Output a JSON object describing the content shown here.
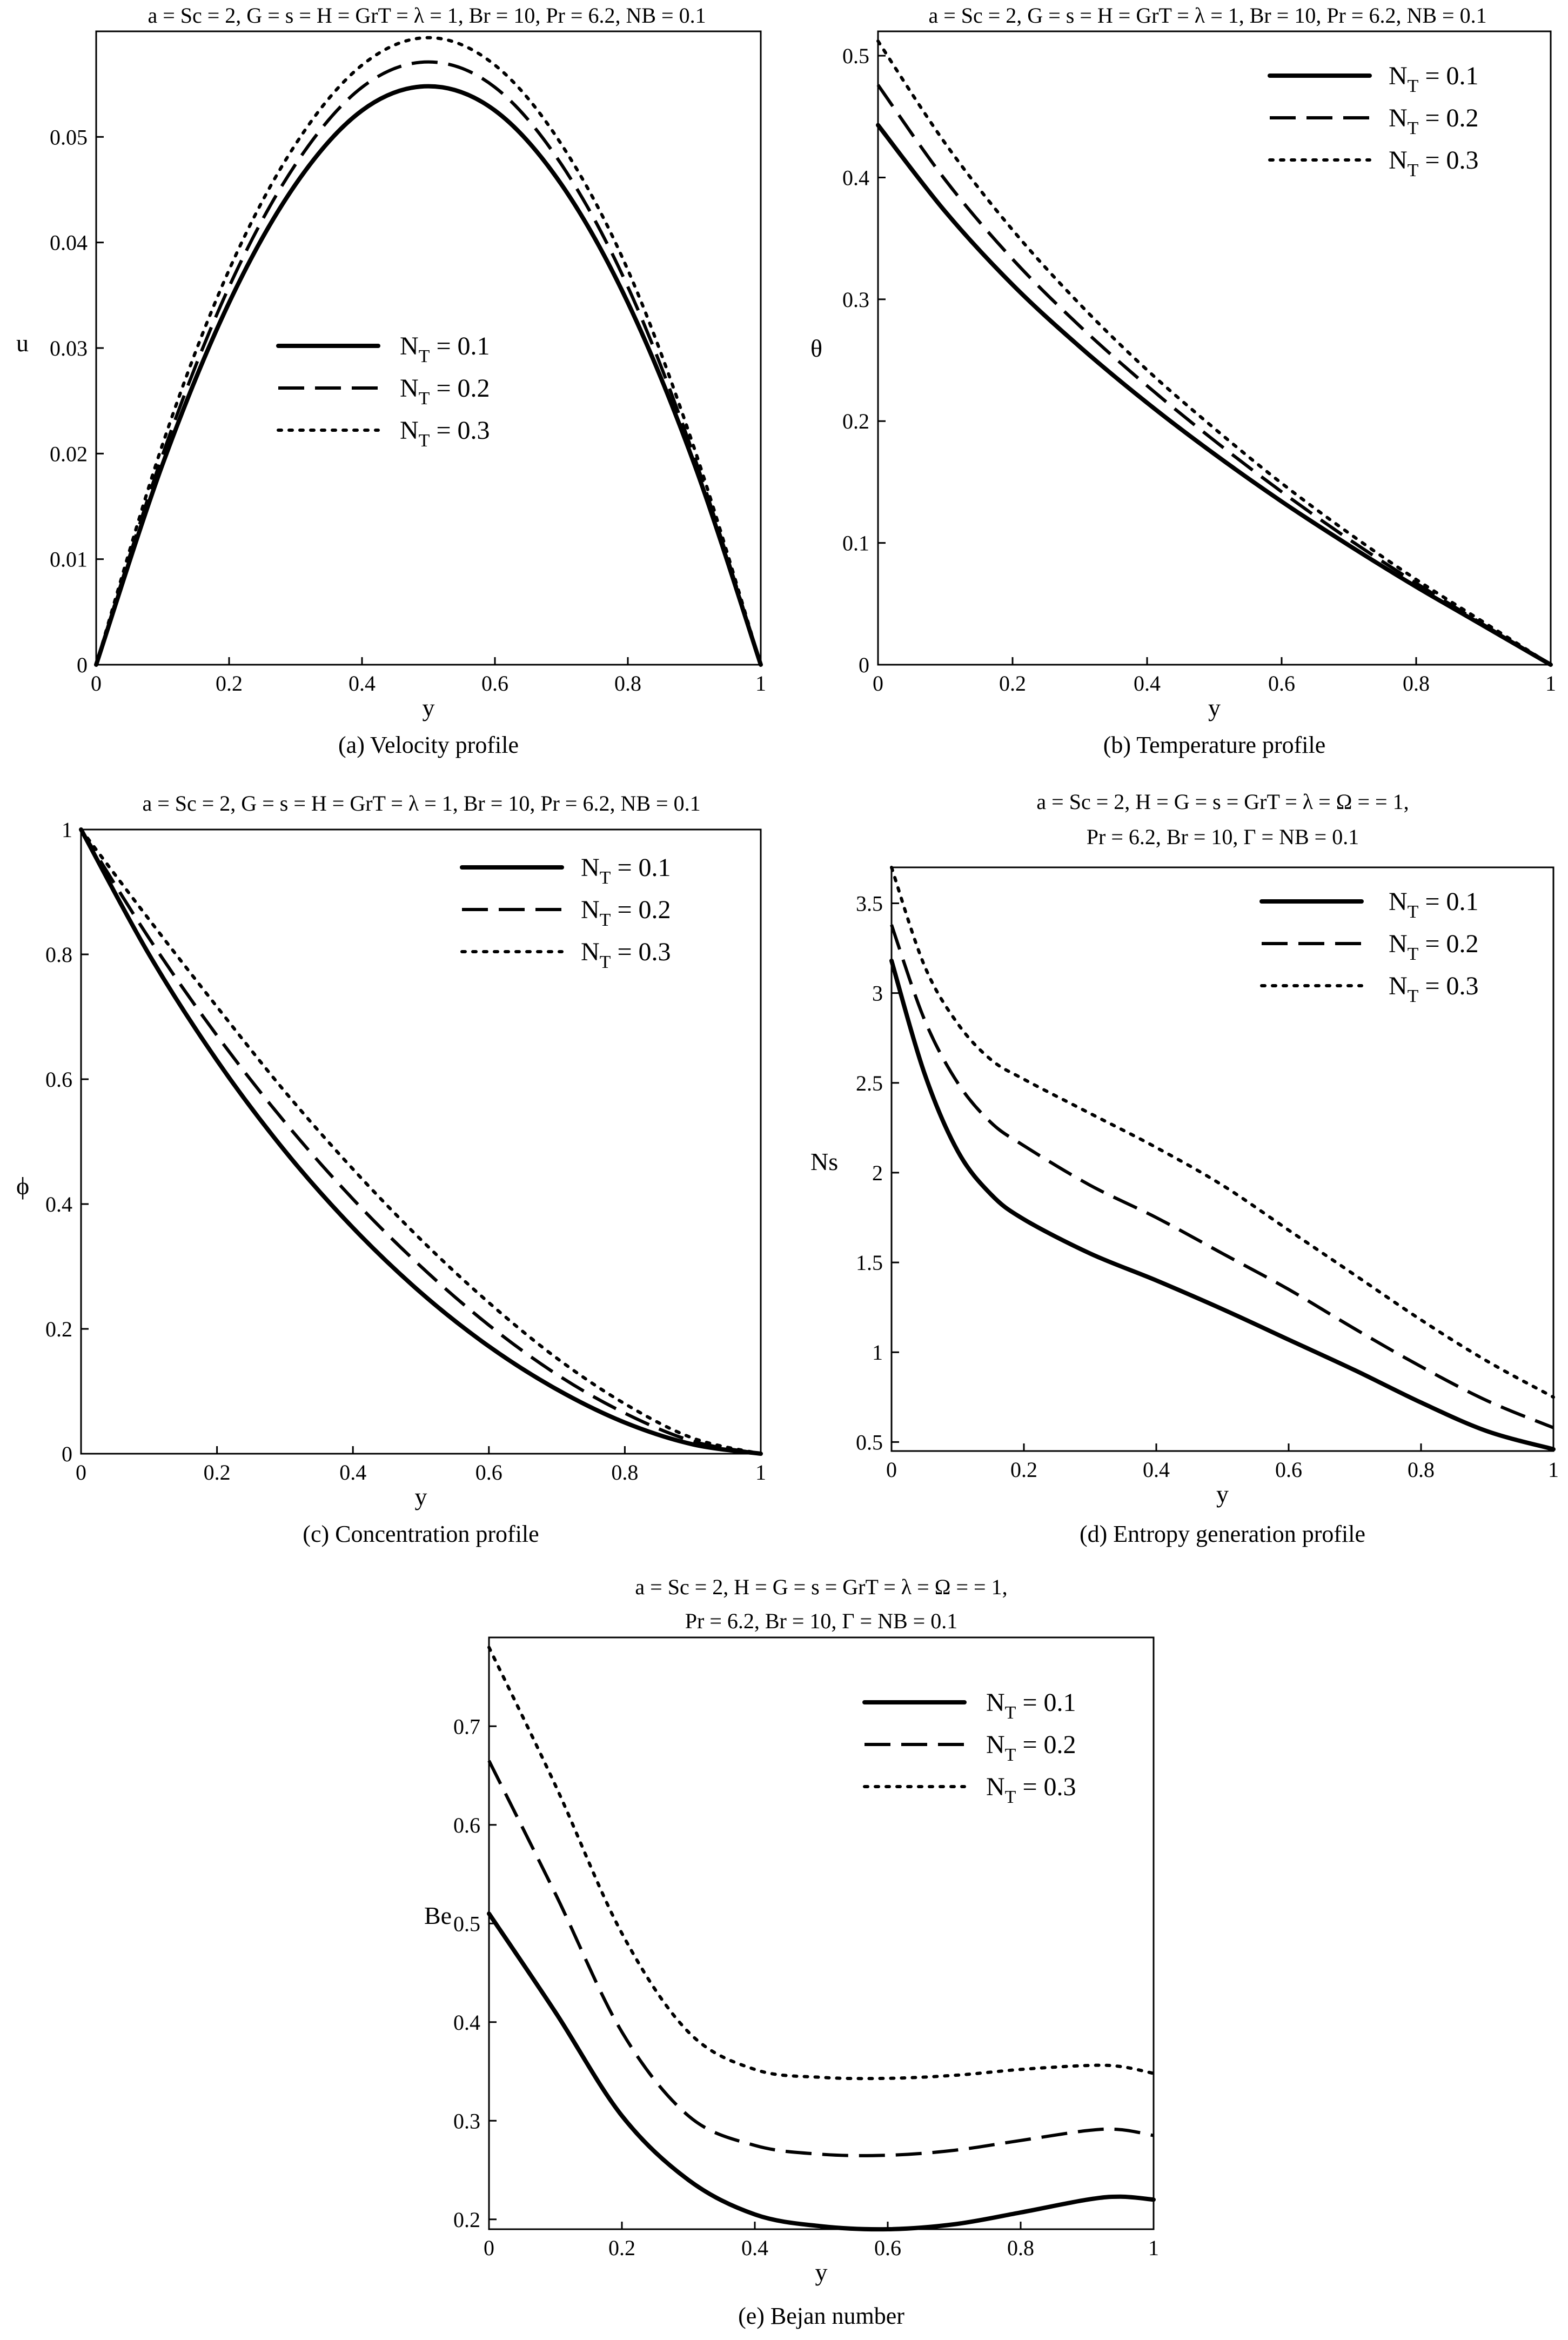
{
  "legend_entries": [
    {
      "name": "N",
      "sub": "T",
      "eq": " = ",
      "val": "0.1"
    },
    {
      "name": "N",
      "sub": "T",
      "eq": " = ",
      "val": "0.2"
    },
    {
      "name": "N",
      "sub": "T",
      "eq": " = ",
      "val": "0.3"
    }
  ],
  "legend_entries_d": [
    {
      "name": "N",
      "sub": "T",
      "eq": " = ",
      "val": "0.1"
    },
    {
      "name": "N",
      "sub": "T",
      "eq": " = ",
      "val": "0.2"
    },
    {
      "name": "N",
      "sub": "T",
      "eq": " = ",
      "val": "0.3"
    }
  ],
  "legend_entries_e": [
    {
      "name": "N",
      "sub": "T",
      "eq": " = ",
      "val": "0.1"
    },
    {
      "name": "N",
      "sub": "T",
      "eq": " = ",
      "val": "0.2"
    },
    {
      "name": "N",
      "sub": "T",
      "eq": " = ",
      "val": "0.3"
    }
  ],
  "chart_data": [
    {
      "id": "a",
      "type": "line",
      "title": [
        "a = Sc = 2, G = s = H =  GrT = λ = 1, Br = 10, Pr = 6.2,  NB = 0.1"
      ],
      "caption": "(a) Velocity profile",
      "xlabel": "y",
      "ylabel": "u",
      "xlim": [
        0,
        1
      ],
      "ylim": [
        0,
        0.06
      ],
      "xticks": [
        0,
        0.2,
        0.4,
        0.6,
        0.8,
        1
      ],
      "xtick_labels": [
        "0",
        "0.2",
        "0.4",
        "0.6",
        "0.8",
        "1"
      ],
      "yticks": [
        0,
        0.01,
        0.02,
        0.03,
        0.04,
        0.05
      ],
      "ytick_labels": [
        "0",
        "0.01",
        "0.02",
        "0.03",
        "0.04",
        "0.05"
      ],
      "legend_position": "center",
      "x": [
        0,
        0.1,
        0.2,
        0.3,
        0.4,
        0.5,
        0.6,
        0.7,
        0.8,
        0.9,
        1
      ],
      "series": [
        {
          "name": "NT = 0.1",
          "style": "solid",
          "values": [
            0,
            0.019,
            0.0343,
            0.0455,
            0.0525,
            0.0548,
            0.0525,
            0.0455,
            0.0343,
            0.019,
            0
          ]
        },
        {
          "name": "NT = 0.2",
          "style": "dashed",
          "values": [
            0,
            0.0199,
            0.0358,
            0.0474,
            0.0547,
            0.0571,
            0.0547,
            0.0474,
            0.0358,
            0.0197,
            0
          ]
        },
        {
          "name": "NT = 0.3",
          "style": "dotted",
          "values": [
            0,
            0.0209,
            0.0374,
            0.0493,
            0.0568,
            0.0594,
            0.0568,
            0.0493,
            0.0374,
            0.0205,
            0
          ]
        }
      ]
    },
    {
      "id": "b",
      "type": "line",
      "title": [
        "a = Sc = 2, G = s = H =  GrT = λ = 1, Br = 10, Pr = 6.2,  NB = 0.1"
      ],
      "caption": "(b) Temperature profile",
      "xlabel": "y",
      "ylabel": "θ",
      "xlim": [
        0,
        1
      ],
      "ylim": [
        0,
        0.52
      ],
      "xticks": [
        0,
        0.2,
        0.4,
        0.6,
        0.8,
        1
      ],
      "xtick_labels": [
        "0",
        "0.2",
        "0.4",
        "0.6",
        "0.8",
        "1"
      ],
      "yticks": [
        0,
        0.1,
        0.2,
        0.3,
        0.4,
        0.5
      ],
      "ytick_labels": [
        "0",
        "0.1",
        "0.2",
        "0.3",
        "0.4",
        "0.5"
      ],
      "legend_position": "top-right",
      "x": [
        0,
        0.1,
        0.2,
        0.3,
        0.4,
        0.5,
        0.6,
        0.7,
        0.8,
        0.9,
        1
      ],
      "series": [
        {
          "name": "NT = 0.1",
          "style": "solid",
          "values": [
            0.443,
            0.372,
            0.312,
            0.261,
            0.215,
            0.173,
            0.134,
            0.098,
            0.064,
            0.032,
            0
          ]
        },
        {
          "name": "NT = 0.2",
          "style": "dashed",
          "values": [
            0.476,
            0.398,
            0.333,
            0.278,
            0.229,
            0.184,
            0.142,
            0.103,
            0.067,
            0.033,
            0
          ]
        },
        {
          "name": "NT = 0.3",
          "style": "dotted",
          "values": [
            0.512,
            0.428,
            0.357,
            0.296,
            0.242,
            0.194,
            0.149,
            0.108,
            0.07,
            0.035,
            0
          ]
        }
      ]
    },
    {
      "id": "c",
      "type": "line",
      "title": [
        "a = Sc = 2, G = s = H =  GrT = λ = 1, Br = 10, Pr = 6.2,  NB = 0.1"
      ],
      "caption": "(c) Concentration profile",
      "xlabel": "y",
      "ylabel": "ϕ",
      "xlim": [
        0,
        1
      ],
      "ylim": [
        0,
        1
      ],
      "xticks": [
        0,
        0.2,
        0.4,
        0.6,
        0.8,
        1
      ],
      "xtick_labels": [
        "0",
        "0.2",
        "0.4",
        "0.6",
        "0.8",
        "1"
      ],
      "yticks": [
        0,
        0.2,
        0.4,
        0.6,
        0.8,
        1
      ],
      "ytick_labels": [
        "0",
        "0.2",
        "0.4",
        "0.6",
        "0.8",
        "1"
      ],
      "legend_position": "top-right",
      "x": [
        0,
        0.1,
        0.2,
        0.3,
        0.4,
        0.5,
        0.6,
        0.7,
        0.8,
        0.9,
        1
      ],
      "series": [
        {
          "name": "NT = 0.1",
          "style": "solid",
          "values": [
            1,
            0.8,
            0.63,
            0.485,
            0.362,
            0.258,
            0.172,
            0.103,
            0.05,
            0.015,
            0
          ]
        },
        {
          "name": "NT = 0.2",
          "style": "dashed",
          "values": [
            1,
            0.826,
            0.67,
            0.531,
            0.408,
            0.3,
            0.206,
            0.127,
            0.065,
            0.02,
            0
          ]
        },
        {
          "name": "NT = 0.3",
          "style": "dotted",
          "values": [
            1,
            0.856,
            0.716,
            0.58,
            0.456,
            0.343,
            0.242,
            0.153,
            0.08,
            0.025,
            0
          ]
        }
      ]
    },
    {
      "id": "d",
      "type": "line",
      "title": [
        "a = Sc = 2, H = G = s = GrT = λ = Ω = = 1,",
        "Pr = 6.2, Br = 10, Γ =  NB = 0.1"
      ],
      "caption": "(d) Entropy generation profile",
      "xlabel": "y",
      "ylabel": "Ns",
      "xlim": [
        0,
        1
      ],
      "ylim": [
        0.45,
        3.7
      ],
      "xticks": [
        0,
        0.2,
        0.4,
        0.6,
        0.8,
        1
      ],
      "xtick_labels": [
        "0",
        "0.2",
        "0.4",
        "0.6",
        "0.8",
        "1"
      ],
      "yticks": [
        0.5,
        1,
        1.5,
        2,
        2.5,
        3,
        3.5
      ],
      "ytick_labels": [
        "0.5",
        "1",
        "1.5",
        "2",
        "2.5",
        "3",
        "3.5"
      ],
      "legend_position": "top-right",
      "x": [
        0,
        0.05,
        0.1,
        0.15,
        0.2,
        0.3,
        0.4,
        0.5,
        0.6,
        0.7,
        0.8,
        0.9,
        1
      ],
      "series": [
        {
          "name": "NT = 0.1",
          "style": "solid",
          "values": [
            3.18,
            2.55,
            2.12,
            1.88,
            1.74,
            1.55,
            1.4,
            1.24,
            1.07,
            0.9,
            0.72,
            0.56,
            0.46
          ]
        },
        {
          "name": "NT = 0.2",
          "style": "dashed",
          "values": [
            3.38,
            2.85,
            2.5,
            2.28,
            2.15,
            1.93,
            1.75,
            1.55,
            1.35,
            1.13,
            0.92,
            0.73,
            0.58
          ]
        },
        {
          "name": "NT = 0.3",
          "style": "dotted",
          "values": [
            3.7,
            3.15,
            2.83,
            2.63,
            2.52,
            2.33,
            2.14,
            1.93,
            1.68,
            1.43,
            1.18,
            0.95,
            0.75
          ]
        }
      ]
    },
    {
      "id": "e",
      "type": "line",
      "title": [
        "a = Sc = 2, H = G = s = GrT = λ = Ω = = 1,",
        "Pr = 6.2, Br = 10, Γ =  NB = 0.1"
      ],
      "caption": "(e) Bejan number",
      "xlabel": "y",
      "ylabel": "Be",
      "xlim": [
        0,
        1
      ],
      "ylim": [
        0.19,
        0.79
      ],
      "xticks": [
        0,
        0.2,
        0.4,
        0.6,
        0.8,
        1
      ],
      "xtick_labels": [
        "0",
        "0.2",
        "0.4",
        "0.6",
        "0.8",
        "1"
      ],
      "yticks": [
        0.2,
        0.3,
        0.4,
        0.5,
        0.6,
        0.7
      ],
      "ytick_labels": [
        "0.2",
        "0.3",
        "0.4",
        "0.5",
        "0.6",
        "0.7"
      ],
      "legend_position": "top-right",
      "x": [
        0,
        0.1,
        0.2,
        0.3,
        0.4,
        0.5,
        0.6,
        0.7,
        0.8,
        0.9,
        0.95,
        1
      ],
      "series": [
        {
          "name": "NT = 0.1",
          "style": "solid",
          "values": [
            0.51,
            0.41,
            0.305,
            0.24,
            0.205,
            0.193,
            0.19,
            0.195,
            0.207,
            0.22,
            0.223,
            0.22
          ]
        },
        {
          "name": "NT = 0.2",
          "style": "dashed",
          "values": [
            0.665,
            0.53,
            0.39,
            0.305,
            0.275,
            0.266,
            0.265,
            0.27,
            0.28,
            0.29,
            0.291,
            0.285
          ]
        },
        {
          "name": "NT = 0.3",
          "style": "dotted",
          "values": [
            0.78,
            0.64,
            0.49,
            0.39,
            0.352,
            0.344,
            0.343,
            0.346,
            0.352,
            0.356,
            0.355,
            0.348
          ]
        }
      ]
    }
  ]
}
